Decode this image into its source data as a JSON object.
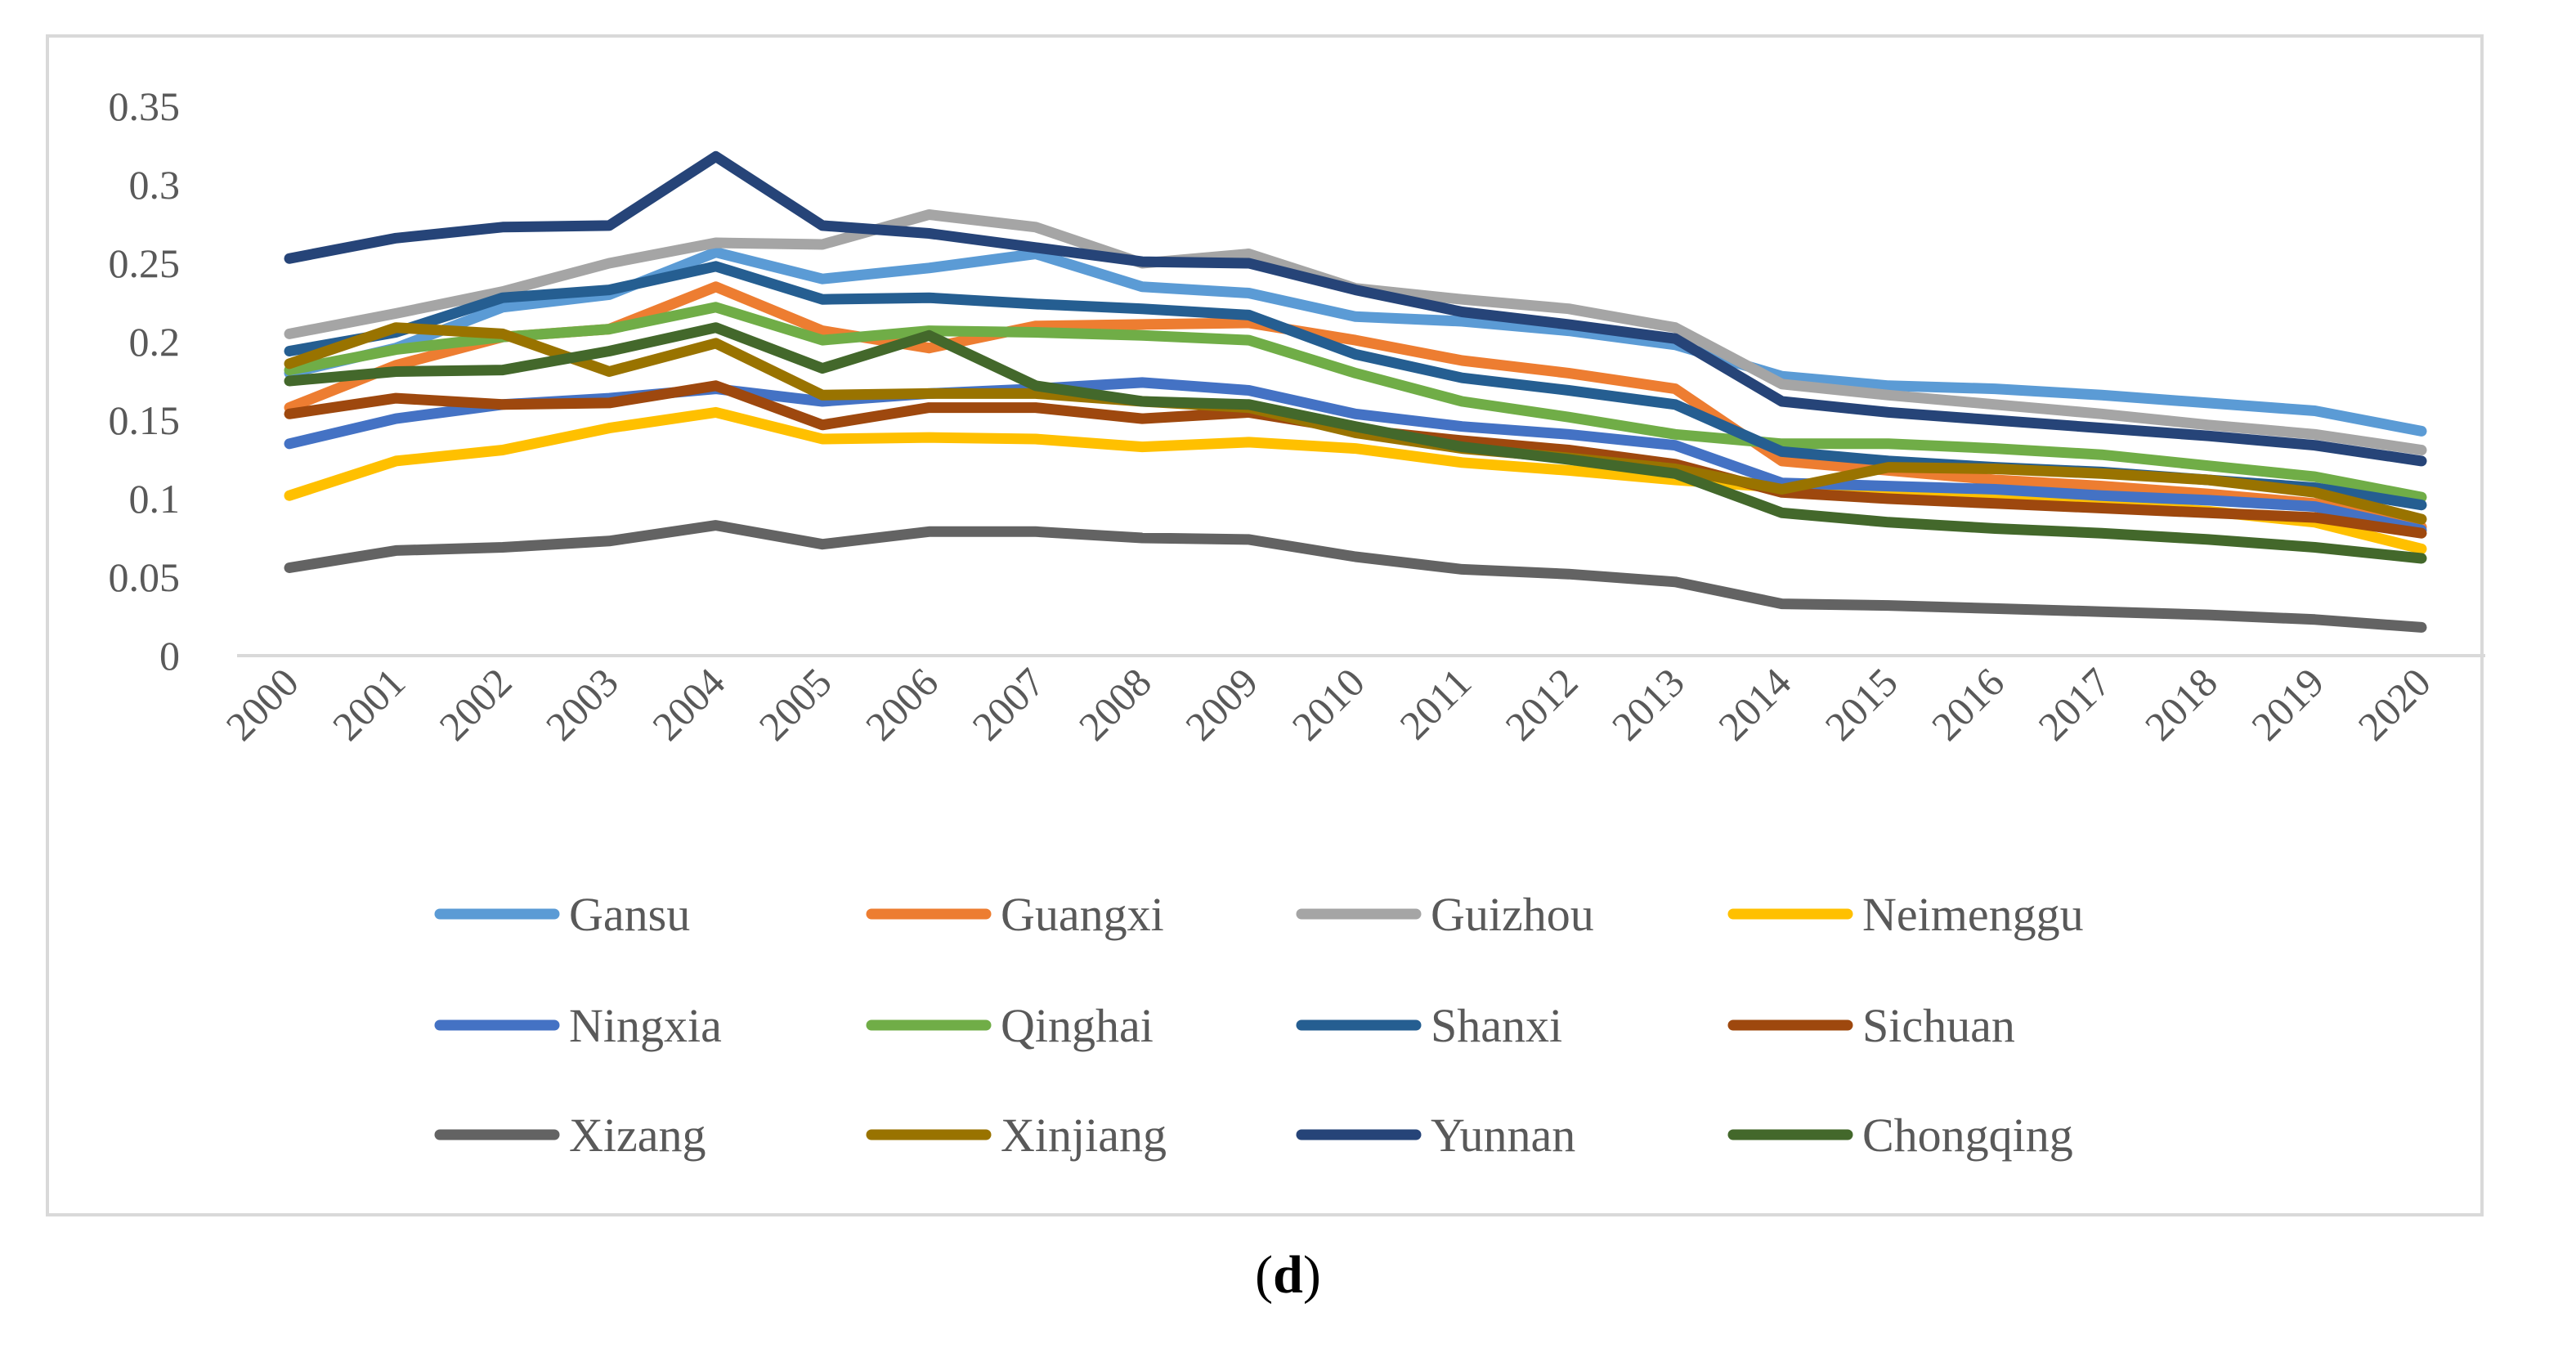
{
  "caption": {
    "open": "(",
    "letter": "d",
    "close": ")"
  },
  "chart_data": {
    "type": "line",
    "title": "",
    "xlabel": "",
    "ylabel": "",
    "ylim": [
      0,
      0.35
    ],
    "yticks": [
      "0",
      "0.05",
      "0.1",
      "0.15",
      "0.2",
      "0.25",
      "0.3",
      "0.35"
    ],
    "grid": false,
    "legend_position": "bottom",
    "categories": [
      "2000",
      "2001",
      "2002",
      "2003",
      "2004",
      "2005",
      "2006",
      "2007",
      "2008",
      "2009",
      "2010",
      "2011",
      "2012",
      "2013",
      "2014",
      "2015",
      "2016",
      "2017",
      "2018",
      "2019",
      "2020"
    ],
    "series": [
      {
        "name": "Gansu",
        "color": "#5b9bd5",
        "values": [
          0.18,
          0.196,
          0.222,
          0.23,
          0.257,
          0.24,
          0.247,
          0.256,
          0.235,
          0.231,
          0.216,
          0.213,
          0.207,
          0.198,
          0.178,
          0.172,
          0.17,
          0.166,
          0.161,
          0.156,
          0.143
        ]
      },
      {
        "name": "Guangxi",
        "color": "#ed7d31",
        "values": [
          0.158,
          0.185,
          0.203,
          0.208,
          0.235,
          0.207,
          0.196,
          0.21,
          0.211,
          0.212,
          0.201,
          0.188,
          0.18,
          0.17,
          0.124,
          0.118,
          0.112,
          0.108,
          0.103,
          0.097,
          0.082
        ]
      },
      {
        "name": "Guizhou",
        "color": "#a5a5a5",
        "values": [
          0.205,
          0.218,
          0.232,
          0.25,
          0.263,
          0.262,
          0.281,
          0.273,
          0.25,
          0.256,
          0.234,
          0.227,
          0.221,
          0.209,
          0.173,
          0.166,
          0.16,
          0.154,
          0.147,
          0.141,
          0.131
        ]
      },
      {
        "name": "Neimenggu",
        "color": "#ffc000",
        "values": [
          0.102,
          0.124,
          0.131,
          0.145,
          0.155,
          0.138,
          0.139,
          0.138,
          0.133,
          0.136,
          0.132,
          0.123,
          0.118,
          0.112,
          0.107,
          0.104,
          0.101,
          0.097,
          0.092,
          0.085,
          0.068
        ]
      },
      {
        "name": "Ningxia",
        "color": "#4472c4",
        "values": [
          0.135,
          0.151,
          0.16,
          0.164,
          0.17,
          0.162,
          0.167,
          0.17,
          0.174,
          0.169,
          0.154,
          0.146,
          0.141,
          0.134,
          0.11,
          0.108,
          0.106,
          0.102,
          0.099,
          0.095,
          0.08
        ]
      },
      {
        "name": "Qinghai",
        "color": "#70ad47",
        "values": [
          0.182,
          0.195,
          0.203,
          0.208,
          0.222,
          0.201,
          0.207,
          0.206,
          0.204,
          0.201,
          0.18,
          0.162,
          0.152,
          0.141,
          0.135,
          0.135,
          0.132,
          0.128,
          0.121,
          0.114,
          0.101
        ]
      },
      {
        "name": "Shanxi",
        "color": "#255e91",
        "values": [
          0.194,
          0.206,
          0.228,
          0.233,
          0.248,
          0.227,
          0.228,
          0.224,
          0.221,
          0.217,
          0.192,
          0.177,
          0.169,
          0.16,
          0.13,
          0.124,
          0.12,
          0.117,
          0.112,
          0.107,
          0.096
        ]
      },
      {
        "name": "Sichuan",
        "color": "#9e480e",
        "values": [
          0.154,
          0.164,
          0.16,
          0.161,
          0.172,
          0.147,
          0.158,
          0.158,
          0.151,
          0.155,
          0.144,
          0.137,
          0.131,
          0.122,
          0.104,
          0.1,
          0.097,
          0.094,
          0.091,
          0.088,
          0.078
        ]
      },
      {
        "name": "Xizang",
        "color": "#636363",
        "values": [
          0.056,
          0.067,
          0.069,
          0.073,
          0.083,
          0.071,
          0.079,
          0.079,
          0.075,
          0.074,
          0.063,
          0.055,
          0.052,
          0.047,
          0.033,
          0.032,
          0.03,
          0.028,
          0.026,
          0.023,
          0.018
        ]
      },
      {
        "name": "Xinjiang",
        "color": "#997300",
        "values": [
          0.186,
          0.209,
          0.205,
          0.181,
          0.199,
          0.166,
          0.167,
          0.167,
          0.162,
          0.158,
          0.142,
          0.132,
          0.126,
          0.119,
          0.106,
          0.12,
          0.119,
          0.116,
          0.112,
          0.104,
          0.087
        ]
      },
      {
        "name": "Yunnan",
        "color": "#264478",
        "values": [
          0.253,
          0.266,
          0.273,
          0.274,
          0.318,
          0.274,
          0.269,
          0.26,
          0.251,
          0.25,
          0.233,
          0.219,
          0.211,
          0.202,
          0.162,
          0.155,
          0.15,
          0.145,
          0.14,
          0.134,
          0.124
        ]
      },
      {
        "name": "Chongqing",
        "color": "#43682b",
        "values": [
          0.175,
          0.181,
          0.182,
          0.194,
          0.209,
          0.183,
          0.204,
          0.172,
          0.162,
          0.16,
          0.146,
          0.133,
          0.125,
          0.116,
          0.091,
          0.085,
          0.081,
          0.078,
          0.074,
          0.069,
          0.062
        ]
      }
    ]
  }
}
